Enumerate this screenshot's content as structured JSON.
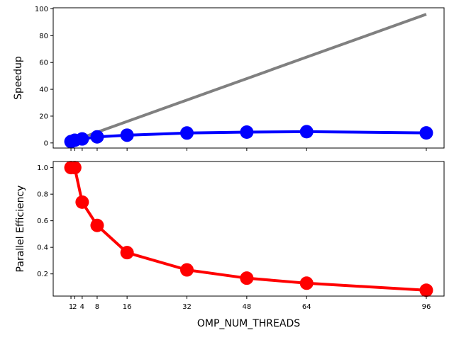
{
  "chart_data": [
    {
      "type": "line",
      "xlabel": "",
      "ylabel": "Speedup",
      "x": [
        1,
        2,
        4,
        8,
        16,
        32,
        48,
        64,
        96
      ],
      "xlim": [
        -3.75,
        100.75
      ],
      "ylim": [
        -3.8,
        100.8
      ],
      "xticks": [
        1,
        2,
        4,
        8,
        16,
        32,
        48,
        64,
        96
      ],
      "show_xtick_labels": false,
      "yticks": [
        0,
        20,
        40,
        60,
        80,
        100
      ],
      "grid": false,
      "series": [
        {
          "values": [
            1,
            2,
            4,
            8,
            16,
            32,
            48,
            64,
            96
          ],
          "color": "#808080",
          "marker": "none"
        },
        {
          "values": [
            1.0,
            2.0,
            2.97,
            4.54,
            5.8,
            7.4,
            8.1,
            8.4,
            7.5
          ],
          "color": "#0000ff",
          "marker": "circle"
        }
      ]
    },
    {
      "type": "line",
      "xlabel": "OMP_NUM_THREADS",
      "ylabel": "Parallel Efficiency",
      "x": [
        1,
        2,
        4,
        8,
        16,
        32,
        48,
        64,
        96
      ],
      "xlim": [
        -3.75,
        100.75
      ],
      "ylim": [
        0.033,
        1.046
      ],
      "xticks": [
        1,
        2,
        4,
        8,
        16,
        32,
        48,
        64,
        96
      ],
      "show_xtick_labels": true,
      "yticks": [
        0.2,
        0.4,
        0.6,
        0.8,
        1.0
      ],
      "grid": false,
      "series": [
        {
          "values": [
            1.0,
            1.0,
            0.74,
            0.565,
            0.36,
            0.23,
            0.168,
            0.13,
            0.077
          ],
          "color": "#ff0000",
          "marker": "circle"
        }
      ]
    }
  ]
}
